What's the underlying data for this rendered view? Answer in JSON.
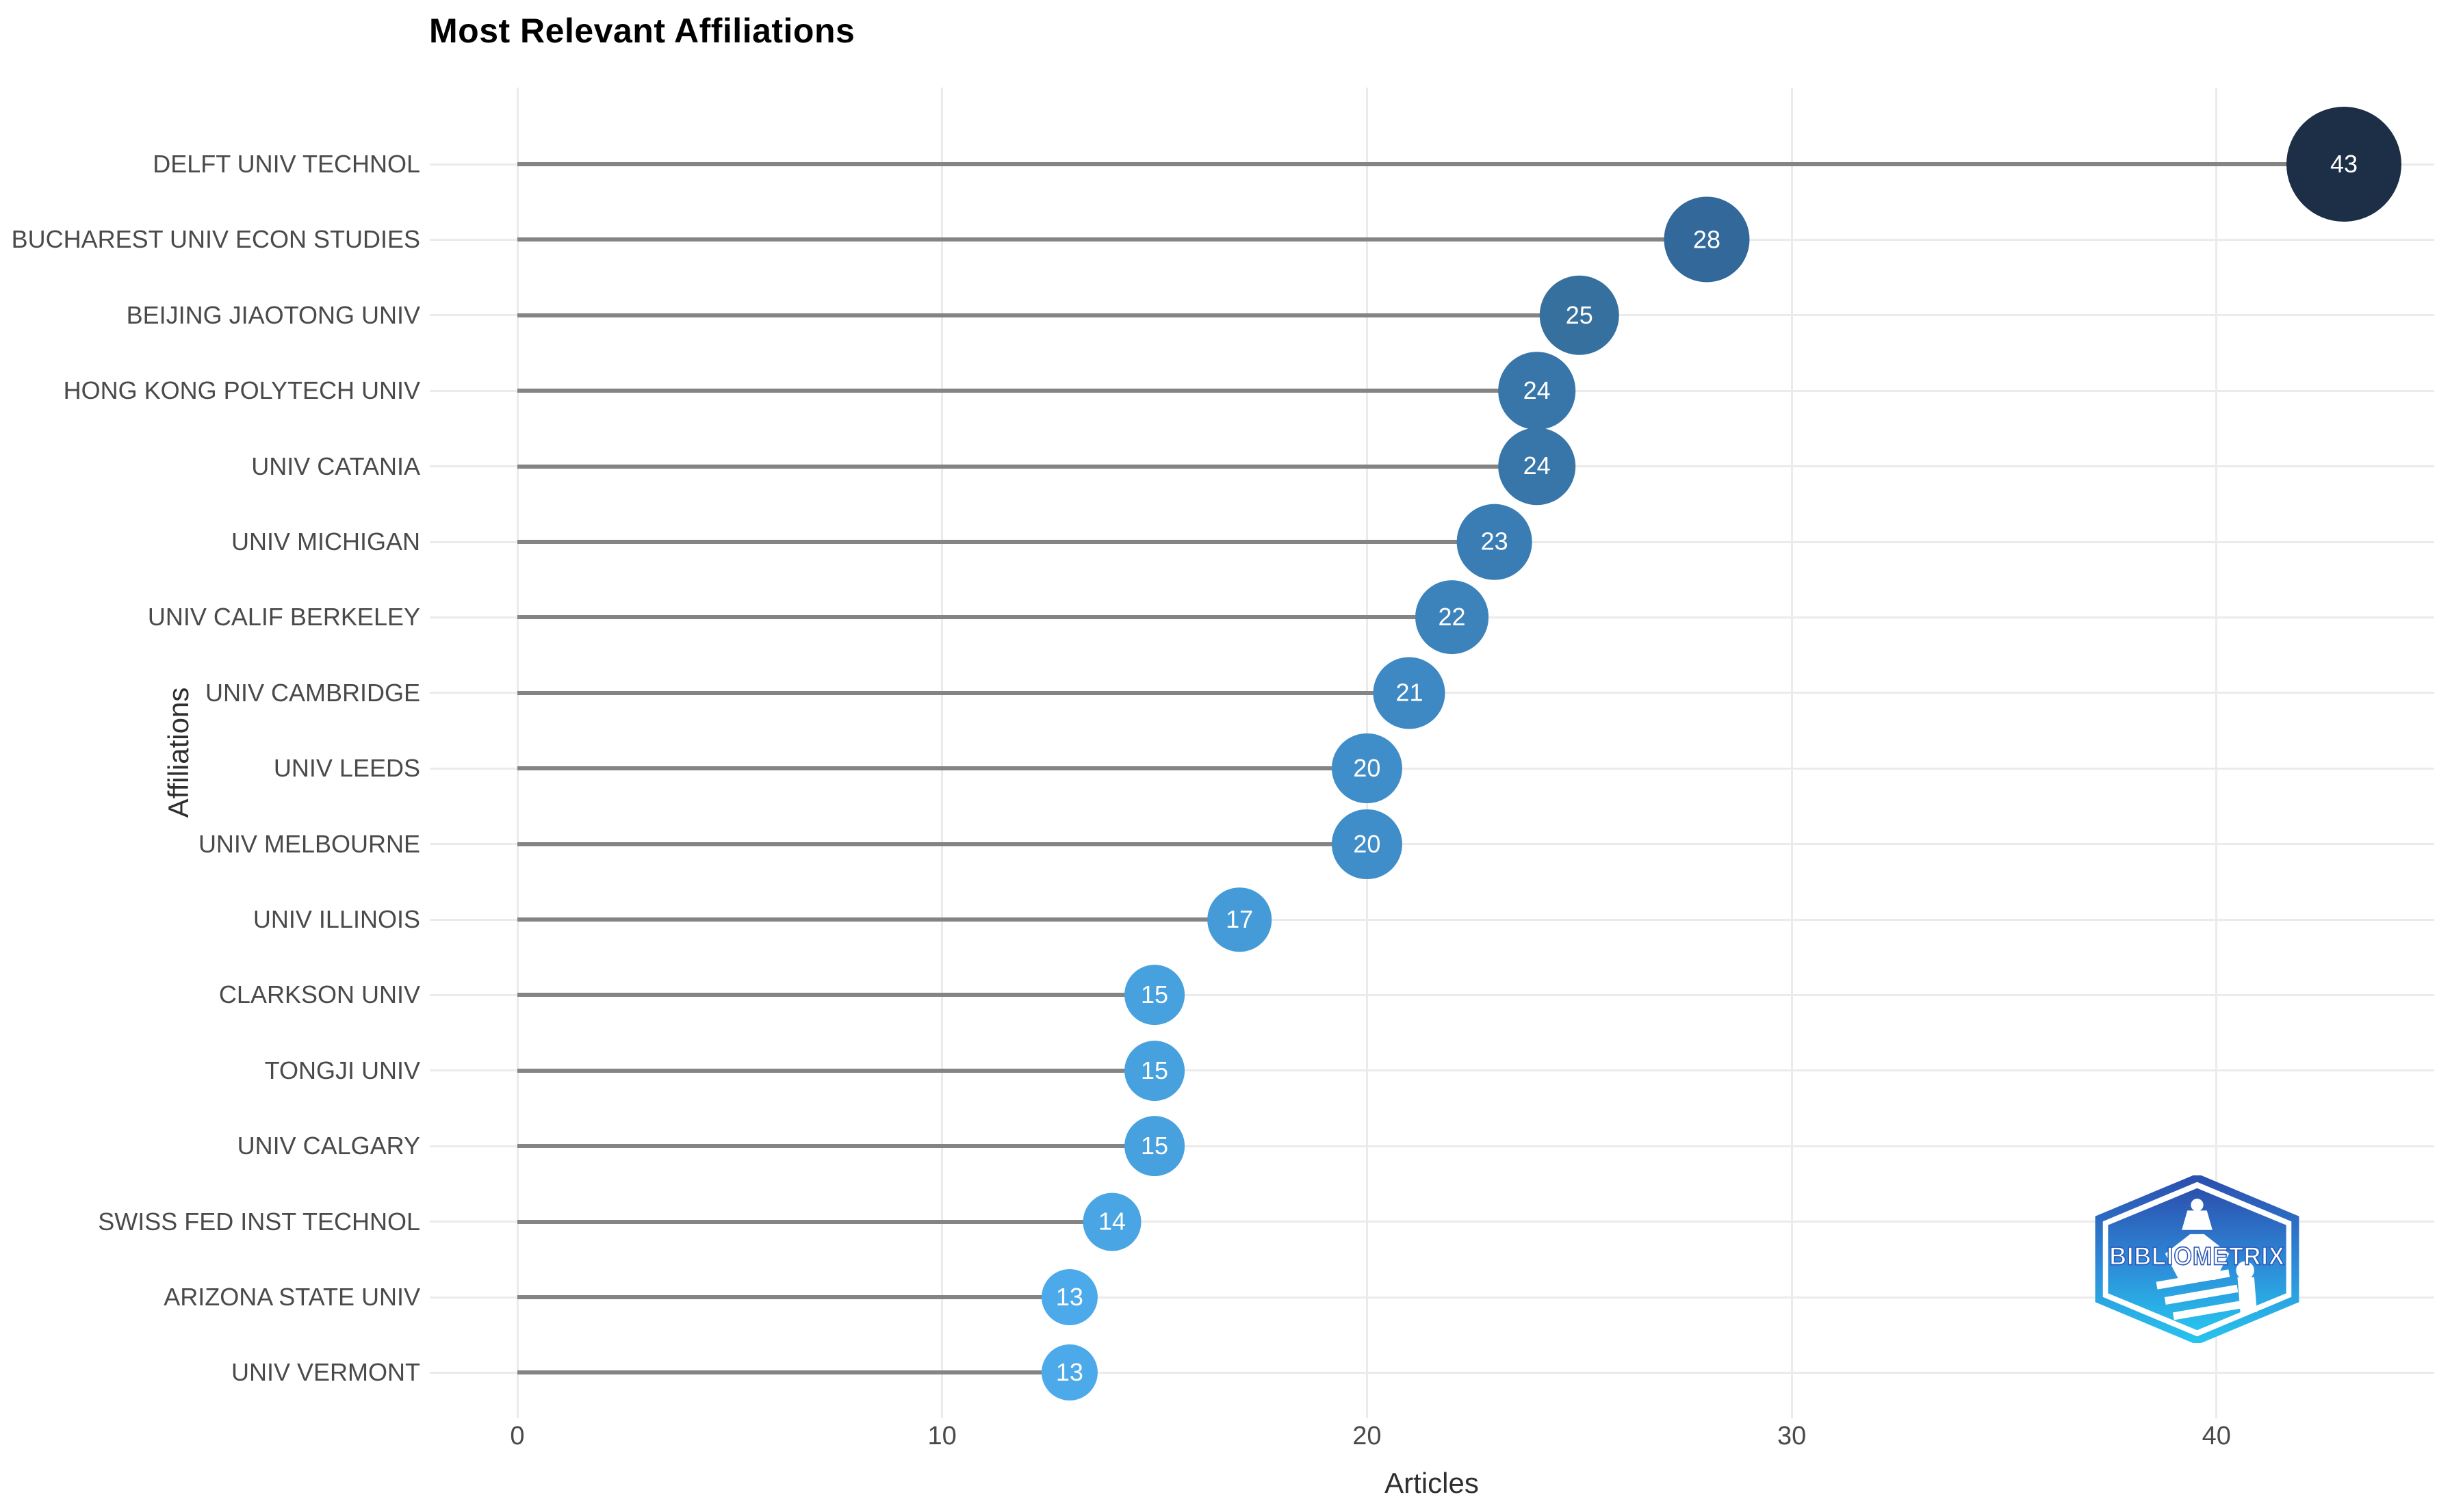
{
  "page": {
    "background": "#ffffff"
  },
  "chart": {
    "title": "Most Relevant Affiliations",
    "xlabel": "Articles",
    "ylabel": "Affiliations"
  },
  "chart_data": {
    "type": "lollipop",
    "orientation": "horizontal",
    "title": "Most Relevant Affiliations",
    "xlabel": "Articles",
    "ylabel": "Affiliations",
    "categories": [
      "DELFT UNIV TECHNOL",
      "BUCHAREST UNIV ECON STUDIES",
      "BEIJING JIAOTONG UNIV",
      "HONG KONG POLYTECH UNIV",
      "UNIV CATANIA",
      "UNIV MICHIGAN",
      "UNIV CALIF BERKELEY",
      "UNIV CAMBRIDGE",
      "UNIV LEEDS",
      "UNIV MELBOURNE",
      "UNIV ILLINOIS",
      "CLARKSON UNIV",
      "TONGJI UNIV",
      "UNIV CALGARY",
      "SWISS FED INST TECHNOL",
      "ARIZONA STATE UNIV",
      "UNIV VERMONT"
    ],
    "values": [
      43,
      28,
      25,
      24,
      24,
      23,
      22,
      21,
      20,
      20,
      17,
      15,
      15,
      15,
      14,
      13,
      13
    ],
    "point_colors": [
      "#1d2e47",
      "#33689b",
      "#36709e",
      "#3876a9",
      "#3876a9",
      "#3a7db4",
      "#3c83bc",
      "#3e88c3",
      "#408ec9",
      "#408ec9",
      "#449bd8",
      "#47a1de",
      "#47a1de",
      "#47a1de",
      "#49a5e3",
      "#4caaea",
      "#4caaea"
    ],
    "xticks": [
      0,
      10,
      20,
      30,
      40
    ],
    "xlim": [
      -2,
      45.2
    ],
    "grid": true,
    "legend": false,
    "stem_color": "#848484",
    "grid_color": "#ebebeb",
    "tick_color": "#4a4a4a",
    "title_color": "#000000",
    "value_label_color": "#ffffff"
  },
  "logo": {
    "text": "BIBLIOMETRIX",
    "gradient_top": "#2b50ae",
    "gradient_mid": "#2e86d6",
    "gradient_bottom": "#27c3ee"
  }
}
